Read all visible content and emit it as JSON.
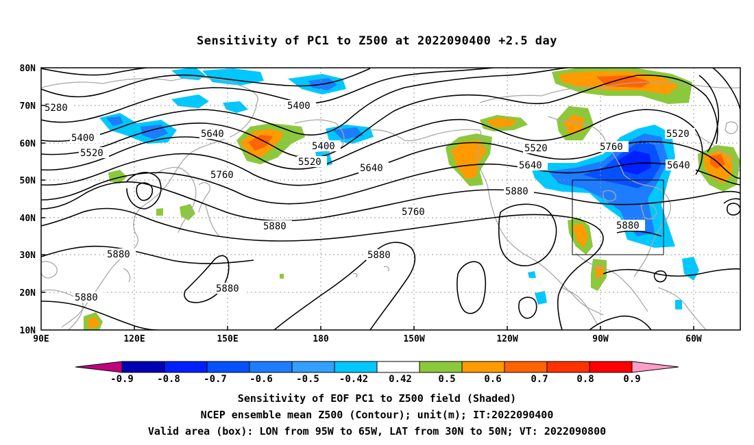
{
  "title": "Sensitivity of PC1 to Z500 at 2022090400 +2.5 day",
  "map": {
    "lat_labels": [
      "80N",
      "70N",
      "60N",
      "50N",
      "40N",
      "30N",
      "20N",
      "10N"
    ],
    "lon_labels": [
      "90E",
      "120E",
      "150E",
      "180",
      "150W",
      "120W",
      "90W",
      "60W"
    ],
    "lon_range": [
      "90E",
      "50W"
    ],
    "lat_range": [
      "10N",
      "80N"
    ],
    "contour_labels": [
      "5280",
      "5400",
      "5520",
      "5640",
      "5760",
      "5880",
      "5400",
      "5400",
      "5520",
      "5640",
      "5760",
      "5880",
      "5880",
      "5880",
      "5880",
      "5520",
      "5640",
      "5760",
      "5880",
      "5520",
      "5640",
      "5880"
    ],
    "valid_box": {
      "lon": [
        "95W",
        "65W"
      ],
      "lat": [
        "30N",
        "50N"
      ]
    }
  },
  "colorbar": {
    "labels": [
      "-0.9",
      "-0.8",
      "-0.7",
      "-0.6",
      "-0.5",
      "-0.42",
      "0.42",
      "0.5",
      "0.6",
      "0.7",
      "0.8",
      "0.9"
    ],
    "colors": [
      "#c0007f",
      "#0000b4",
      "#0020ff",
      "#0550ff",
      "#1e7cff",
      "#32a0ff",
      "#00c8ff",
      "#ffffff",
      "#8cc83c",
      "#ff9b00",
      "#ff6400",
      "#ff3200",
      "#ff0000",
      "#ff9ec8"
    ]
  },
  "notes": {
    "line1": "Sensitivity of EOF PC1 to Z500 field (Shaded)",
    "line2": "NCEP ensemble mean Z500 (Contour); unit(m); IT:2022090400",
    "line3": "Valid area (box): LON from 95W to 65W, LAT from 30N to 50N; VT: 2022090800"
  }
}
